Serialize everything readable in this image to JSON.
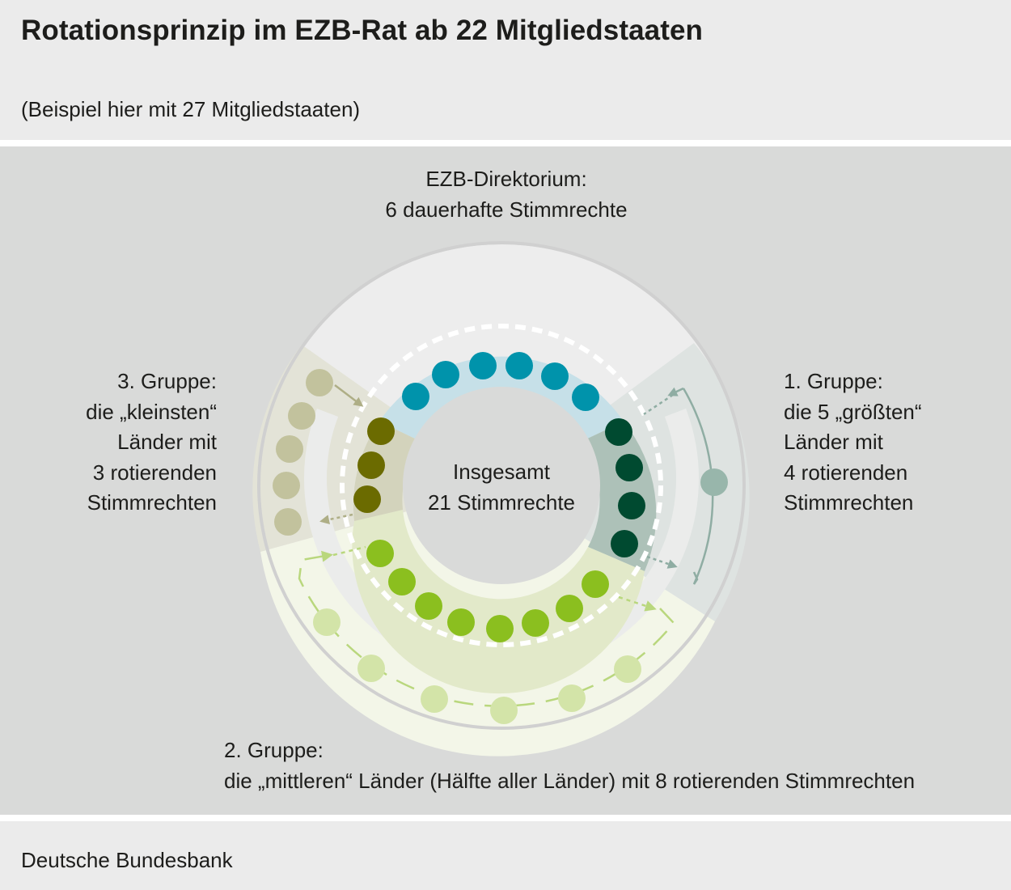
{
  "header": {
    "title": "Rotationsprinzip im EZB-Rat ab 22 Mitgliedstaaten",
    "subtitle": "(Beispiel hier mit 27 Mitgliedstaaten)"
  },
  "diagram": {
    "directorate": {
      "line1": "EZB-Direktorium:",
      "line2": "6 dauerhafte Stimmrechte"
    },
    "center": {
      "line1": "Insgesamt",
      "line2": "21 Stimmrechte"
    },
    "group1": {
      "line1": "1. Gruppe:",
      "line2": "die 5 „größten“",
      "line3": "Länder mit",
      "line4": "4 rotierenden",
      "line5": "Stimmrechten"
    },
    "group2": {
      "line1": "2. Gruppe:",
      "line2": "die „mittleren“ Länder (Hälfte aller Länder) mit 8 rotierenden Stimmrechten"
    },
    "group3": {
      "line1": "3. Gruppe:",
      "line2": "die „kleinsten“",
      "line3": "Länder mit",
      "line4": "3 rotierenden",
      "line5": "Stimmrechten"
    }
  },
  "counts": {
    "directorate_votes": 6,
    "group1_voting": 4,
    "group1_waiting": 1,
    "group2_voting": 8,
    "group2_waiting": 6,
    "group3_voting": 3,
    "group3_waiting": 5
  },
  "colors": {
    "directorate": "#0093ab",
    "group1_voting": "#004a30",
    "group1_waiting": "#98b6ab",
    "group2_voting": "#8bbf1f",
    "group2_waiting": "#d3e4a8",
    "group3_voting": "#6b6b00",
    "group3_waiting": "#c2c29d"
  },
  "footer": {
    "source": "Deutsche Bundesbank"
  }
}
